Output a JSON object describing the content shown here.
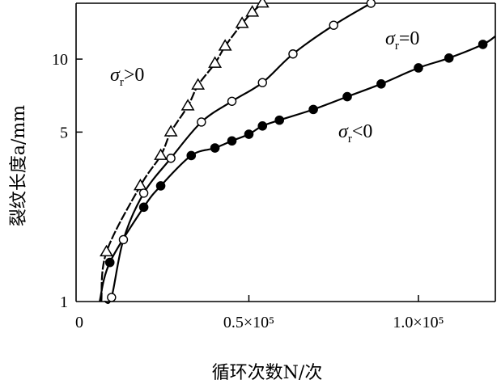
{
  "chart_data": {
    "type": "scatter",
    "xlabel": "循环次数N/次",
    "ylabel": "裂纹长度a/mm",
    "x_ticks": [
      "0",
      "0.5×10⁵",
      "1.0×10⁵"
    ],
    "x_tick_values": [
      0,
      50000,
      100000
    ],
    "y_ticks": [
      "1",
      "5",
      "10"
    ],
    "y_tick_values": [
      1,
      5,
      10
    ],
    "xlim": [
      -1000,
      120000
    ],
    "ylim": [
      1,
      17
    ],
    "y_scale": "log",
    "grid": false,
    "series": [
      {
        "name": "σr>0",
        "marker": "triangle-open",
        "x": [
          8000,
          18000,
          24000,
          27000,
          32000,
          35000,
          40000,
          43000,
          48000,
          51000,
          54000
        ],
        "y": [
          1.6,
          3.0,
          4.0,
          5.0,
          6.4,
          7.8,
          9.6,
          11.3,
          14.0,
          15.6,
          17.0
        ]
      },
      {
        "name": "σr=0",
        "marker": "circle-open",
        "x": [
          9500,
          13000,
          19000,
          27000,
          36000,
          45000,
          54000,
          63000,
          75000,
          86000
        ],
        "y": [
          1.04,
          1.8,
          2.8,
          3.9,
          5.5,
          6.7,
          8.0,
          10.5,
          13.8,
          17.0
        ]
      },
      {
        "name": "σr<0",
        "marker": "circle-filled",
        "x": [
          9000,
          19000,
          24000,
          33000,
          40000,
          45000,
          50000,
          54000,
          59000,
          69000,
          79000,
          89000,
          100000,
          109000,
          119000
        ],
        "y": [
          1.45,
          2.45,
          3.0,
          4.0,
          4.3,
          4.6,
          4.9,
          5.3,
          5.6,
          6.2,
          7.0,
          7.9,
          9.2,
          10.1,
          11.5
        ]
      }
    ],
    "annotations": [
      {
        "text_main": "σ",
        "text_sub": "r",
        "text_rest": ">0"
      },
      {
        "text_main": "σ",
        "text_sub": "r",
        "text_rest": "=0"
      },
      {
        "text_main": "σ",
        "text_sub": "r",
        "text_rest": "<0"
      }
    ]
  }
}
